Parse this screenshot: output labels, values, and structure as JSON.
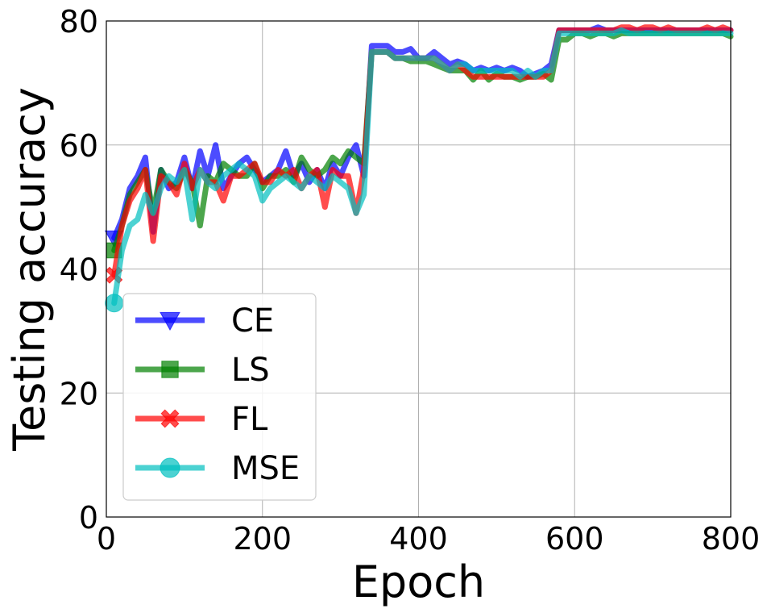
{
  "chart_data": {
    "type": "line",
    "title": "",
    "xlabel": "Epoch",
    "ylabel": "Testing accuracy",
    "xlim": [
      0,
      800
    ],
    "ylim": [
      0,
      80
    ],
    "xticks": [
      "0",
      "200",
      "400",
      "600",
      "800"
    ],
    "yticks": [
      "0",
      "20",
      "40",
      "60",
      "80"
    ],
    "grid": true,
    "legend_position": "lower-left",
    "x": [
      10,
      20,
      30,
      40,
      50,
      60,
      70,
      80,
      90,
      100,
      110,
      120,
      130,
      140,
      150,
      160,
      170,
      180,
      190,
      200,
      210,
      220,
      230,
      240,
      250,
      260,
      270,
      280,
      290,
      300,
      310,
      320,
      330,
      340,
      350,
      360,
      370,
      380,
      390,
      400,
      410,
      420,
      430,
      440,
      450,
      460,
      470,
      480,
      490,
      500,
      510,
      520,
      530,
      540,
      550,
      560,
      570,
      580,
      590,
      600,
      610,
      620,
      630,
      640,
      650,
      660,
      670,
      680,
      690,
      700,
      710,
      720,
      730,
      740,
      750,
      760,
      770,
      780,
      790,
      800
    ],
    "series": [
      {
        "name": "CE",
        "color": "#0000ff",
        "marker": "triangle-down",
        "values": [
          45,
          48,
          53,
          55,
          58,
          46,
          56,
          53,
          54,
          58,
          53,
          59,
          55,
          60,
          53,
          55,
          57,
          58,
          56,
          54,
          55,
          56,
          59,
          55,
          57,
          54,
          56,
          53,
          57,
          55,
          58,
          60,
          55,
          76,
          76,
          76,
          75,
          75,
          75.5,
          74,
          74,
          75,
          74,
          73,
          73.5,
          73,
          72,
          72.5,
          72,
          72.5,
          72,
          72.5,
          72,
          71,
          71.5,
          72,
          73,
          78.5,
          78.5,
          78.5,
          78.5,
          78.5,
          79,
          78.5,
          78.5,
          78.5,
          78.5,
          78.5,
          78.5,
          78.5,
          78.5,
          78.5,
          78.5,
          78.5,
          78.5,
          78.5,
          78.5,
          78.5,
          78.5,
          78.5
        ]
      },
      {
        "name": "LS",
        "color": "#008000",
        "marker": "square",
        "values": [
          43,
          47,
          52,
          54,
          56,
          49,
          56,
          54,
          53,
          56,
          54,
          47,
          55,
          54,
          57,
          56,
          55,
          55,
          57,
          53,
          55,
          55,
          56,
          54,
          58,
          56,
          55,
          56,
          58,
          57,
          59,
          58,
          57,
          75,
          75,
          75,
          74,
          74,
          73.5,
          73.5,
          73.5,
          73,
          72.5,
          72,
          72,
          72,
          70.5,
          72,
          70.5,
          71.5,
          71,
          71,
          70.5,
          71,
          71,
          71.5,
          70.5,
          77,
          77,
          78,
          78,
          77.5,
          78,
          78,
          77.5,
          78,
          78,
          78,
          78,
          78,
          78,
          78,
          78,
          78,
          78,
          78,
          78,
          78,
          78,
          77.5
        ]
      },
      {
        "name": "FL",
        "color": "#ff0000",
        "marker": "x",
        "values": [
          39,
          47,
          51,
          53,
          56,
          44.5,
          55,
          54,
          52,
          57,
          53,
          56,
          54,
          54,
          51,
          55,
          55,
          56,
          57,
          54,
          54,
          56,
          55,
          56,
          53,
          55,
          56,
          50,
          56,
          55,
          55,
          49,
          56,
          75,
          75,
          75,
          74,
          74,
          74,
          74,
          74,
          74,
          73,
          72,
          73,
          72,
          71,
          71,
          71,
          71,
          71,
          71,
          71,
          71,
          71,
          71,
          72,
          78.5,
          78.5,
          78.5,
          78.5,
          78.5,
          78.5,
          78.5,
          78.5,
          79,
          79,
          78.5,
          79,
          79,
          78.5,
          79,
          78.5,
          78.5,
          78.5,
          78.5,
          79,
          78.5,
          79,
          78.5
        ]
      },
      {
        "name": "MSE",
        "color": "#00bfbf",
        "marker": "circle",
        "values": [
          34.5,
          43,
          47,
          48,
          52,
          49,
          53,
          55,
          54,
          56,
          48,
          56,
          54,
          53,
          55,
          56,
          57,
          56,
          55,
          51,
          53,
          54,
          55,
          54,
          53,
          55,
          54,
          53,
          55,
          54,
          53,
          49,
          52,
          75,
          75,
          75,
          74,
          74,
          74,
          74,
          74,
          74,
          73,
          72,
          73,
          73,
          72,
          72,
          72,
          72,
          72,
          72,
          71,
          72,
          71,
          72,
          72,
          78,
          78,
          78,
          78,
          78,
          78,
          78,
          78,
          78.5,
          78,
          78,
          78,
          78,
          78,
          78,
          78,
          78,
          78,
          78,
          78,
          78,
          78,
          78
        ]
      }
    ]
  }
}
